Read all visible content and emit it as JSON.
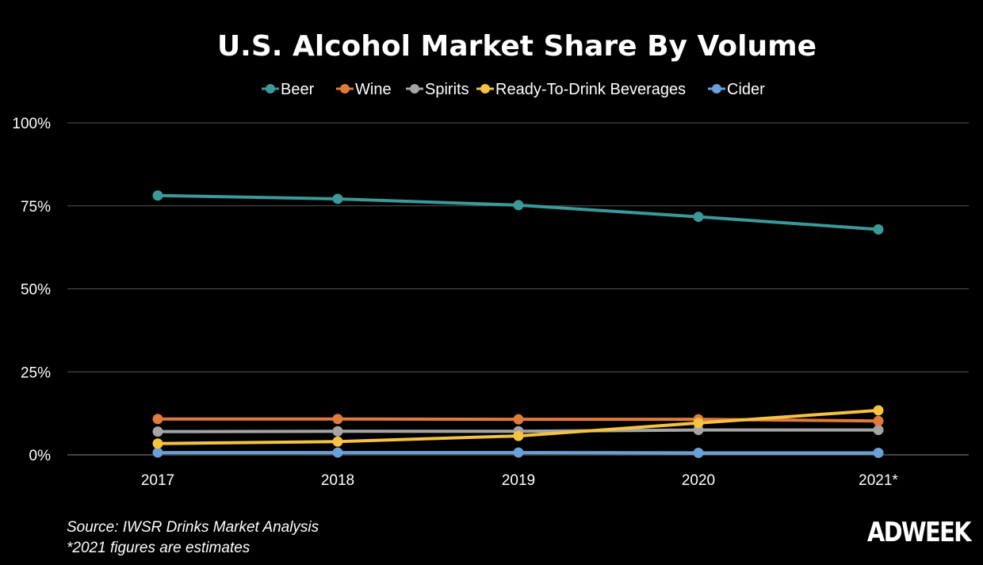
{
  "chart_data": {
    "type": "line",
    "title": "U.S. Alcohol Market Share By Volume",
    "categories": [
      "2017",
      "2018",
      "2019",
      "2020",
      "2021*"
    ],
    "yticks": [
      "0%",
      "25%",
      "50%",
      "75%",
      "100%"
    ],
    "ylim": [
      0,
      100
    ],
    "grid": true,
    "legend_placement": "top",
    "series": [
      {
        "name": "Beer",
        "color": "#3a9a98",
        "values": [
          78.1,
          77.1,
          75.2,
          71.7,
          67.9
        ]
      },
      {
        "name": "Wine",
        "color": "#e07b3c",
        "values": [
          10.8,
          10.8,
          10.7,
          10.7,
          10.2
        ]
      },
      {
        "name": "Spirits",
        "color": "#a5a5a5",
        "values": [
          7.0,
          7.1,
          7.1,
          7.5,
          7.5
        ]
      },
      {
        "name": "Ready-To-Drink Beverages",
        "color": "#f5c242",
        "values": [
          3.4,
          4.0,
          5.7,
          9.6,
          13.4
        ]
      },
      {
        "name": "Cider",
        "color": "#6a9fd8",
        "values": [
          0.7,
          0.7,
          0.7,
          0.6,
          0.6
        ]
      }
    ]
  },
  "footer": {
    "source": "Source: IWSR Drinks Market Analysis",
    "note": "*2021 figures are estimates",
    "logo": "ADWEEK"
  }
}
